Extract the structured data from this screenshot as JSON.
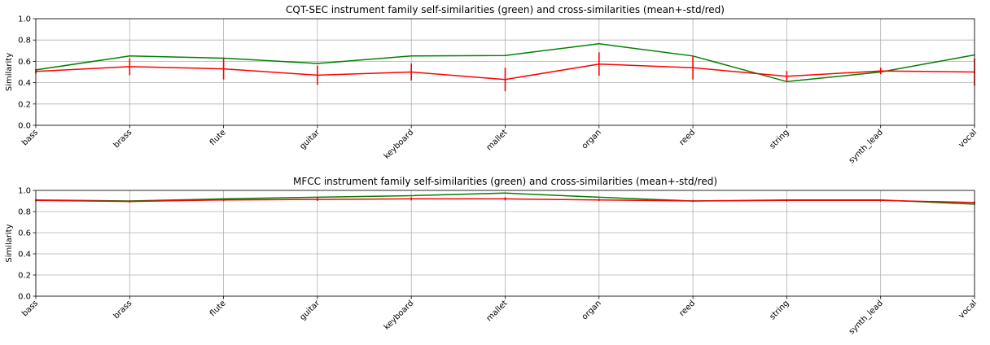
{
  "chart_data": [
    {
      "type": "line",
      "title": "CQT-SEC instrument family self-similarities (green) and cross-similarities (mean+-std/red)",
      "xlabel": "",
      "ylabel": "Similarity",
      "ylim": [
        0,
        1.0
      ],
      "yticks": [
        "0.0",
        "0.2",
        "0.4",
        "0.6",
        "0.8",
        "1.0"
      ],
      "grid": true,
      "categories": [
        "bass",
        "brass",
        "flute",
        "guitar",
        "keyboard",
        "mallet",
        "organ",
        "reed",
        "string",
        "synth_lead",
        "vocal"
      ],
      "series": [
        {
          "color": "#008000",
          "values": [
            0.52,
            0.65,
            0.63,
            0.58,
            0.65,
            0.655,
            0.765,
            0.65,
            0.41,
            0.5,
            0.66
          ]
        },
        {
          "color": "#ff0000",
          "values": [
            0.505,
            0.55,
            0.53,
            0.47,
            0.5,
            0.43,
            0.575,
            0.54,
            0.46,
            0.51,
            0.5
          ],
          "std": [
            0.02,
            0.08,
            0.1,
            0.09,
            0.08,
            0.11,
            0.11,
            0.11,
            0.05,
            0.03,
            0.13
          ]
        }
      ]
    },
    {
      "type": "line",
      "title": "MFCC instrument family self-similarities (green) and cross-similarities (mean+-std/red)",
      "xlabel": "",
      "ylabel": "Similarity",
      "ylim": [
        0,
        1.0
      ],
      "yticks": [
        "0.0",
        "0.2",
        "0.4",
        "0.6",
        "0.8",
        "1.0"
      ],
      "grid": true,
      "categories": [
        "bass",
        "brass",
        "flute",
        "guitar",
        "keyboard",
        "mallet",
        "organ",
        "reed",
        "string",
        "synth_lead",
        "vocal"
      ],
      "series": [
        {
          "color": "#008000",
          "values": [
            0.91,
            0.9,
            0.92,
            0.935,
            0.95,
            0.975,
            0.935,
            0.9,
            0.91,
            0.91,
            0.87
          ]
        },
        {
          "color": "#ff0000",
          "values": [
            0.905,
            0.895,
            0.91,
            0.915,
            0.92,
            0.92,
            0.91,
            0.9,
            0.905,
            0.905,
            0.885
          ],
          "std": [
            0.01,
            0.01,
            0.01,
            0.015,
            0.015,
            0.015,
            0.01,
            0.01,
            0.01,
            0.01,
            0.01
          ]
        }
      ]
    }
  ]
}
